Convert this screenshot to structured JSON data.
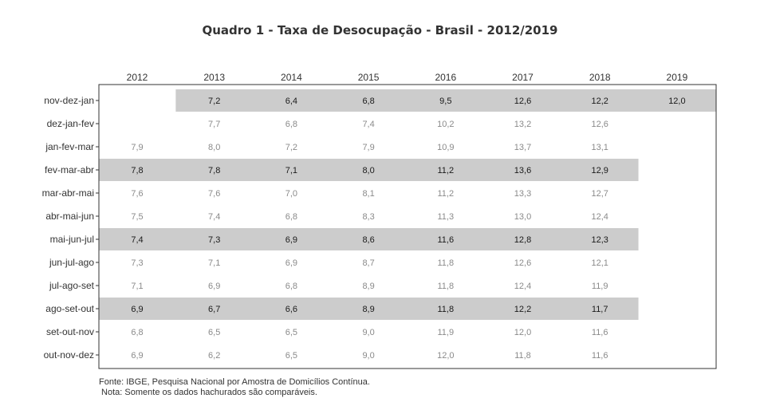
{
  "title": "Quadro 1 - Taxa de Desocupação - Brasil - 2012/2019",
  "chart_data": {
    "type": "table",
    "title": "Quadro 1 - Taxa de Desocupação - Brasil - 2012/2019",
    "columns": [
      "2012",
      "2013",
      "2014",
      "2015",
      "2016",
      "2017",
      "2018",
      "2019"
    ],
    "rows": [
      {
        "label": "nov-dez-jan",
        "values": [
          "",
          "7,2",
          "6,4",
          "6,8",
          "9,5",
          "12,6",
          "12,2",
          "12,0"
        ],
        "highlighted": true
      },
      {
        "label": "dez-jan-fev",
        "values": [
          "",
          "7,7",
          "6,8",
          "7,4",
          "10,2",
          "13,2",
          "12,6",
          ""
        ],
        "highlighted": false
      },
      {
        "label": "jan-fev-mar",
        "values": [
          "7,9",
          "8,0",
          "7,2",
          "7,9",
          "10,9",
          "13,7",
          "13,1",
          ""
        ],
        "highlighted": false
      },
      {
        "label": "fev-mar-abr",
        "values": [
          "7,8",
          "7,8",
          "7,1",
          "8,0",
          "11,2",
          "13,6",
          "12,9",
          ""
        ],
        "highlighted": true
      },
      {
        "label": "mar-abr-mai",
        "values": [
          "7,6",
          "7,6",
          "7,0",
          "8,1",
          "11,2",
          "13,3",
          "12,7",
          ""
        ],
        "highlighted": false
      },
      {
        "label": "abr-mai-jun",
        "values": [
          "7,5",
          "7,4",
          "6,8",
          "8,3",
          "11,3",
          "13,0",
          "12,4",
          ""
        ],
        "highlighted": false
      },
      {
        "label": "mai-jun-jul",
        "values": [
          "7,4",
          "7,3",
          "6,9",
          "8,6",
          "11,6",
          "12,8",
          "12,3",
          ""
        ],
        "highlighted": true
      },
      {
        "label": "jun-jul-ago",
        "values": [
          "7,3",
          "7,1",
          "6,9",
          "8,7",
          "11,8",
          "12,6",
          "12,1",
          ""
        ],
        "highlighted": false
      },
      {
        "label": "jul-ago-set",
        "values": [
          "7,1",
          "6,9",
          "6,8",
          "8,9",
          "11,8",
          "12,4",
          "11,9",
          ""
        ],
        "highlighted": false
      },
      {
        "label": "ago-set-out",
        "values": [
          "6,9",
          "6,7",
          "6,6",
          "8,9",
          "11,8",
          "12,2",
          "11,7",
          ""
        ],
        "highlighted": true
      },
      {
        "label": "set-out-nov",
        "values": [
          "6,8",
          "6,5",
          "6,5",
          "9,0",
          "11,9",
          "12,0",
          "11,6",
          ""
        ],
        "highlighted": false
      },
      {
        "label": "out-nov-dez",
        "values": [
          "6,9",
          "6,2",
          "6,5",
          "9,0",
          "12,0",
          "11,8",
          "11,6",
          ""
        ],
        "highlighted": false
      }
    ],
    "highlight_color": "#cccccc",
    "highlight_text_color": "#1a1a1a",
    "normal_text_color": "#8a8a8a"
  },
  "footer": {
    "source": "Fonte: IBGE, Pesquisa Nacional por Amostra de Domicílios Contínua.",
    "note": " Nota: Somente os dados hachurados são comparáveis."
  }
}
